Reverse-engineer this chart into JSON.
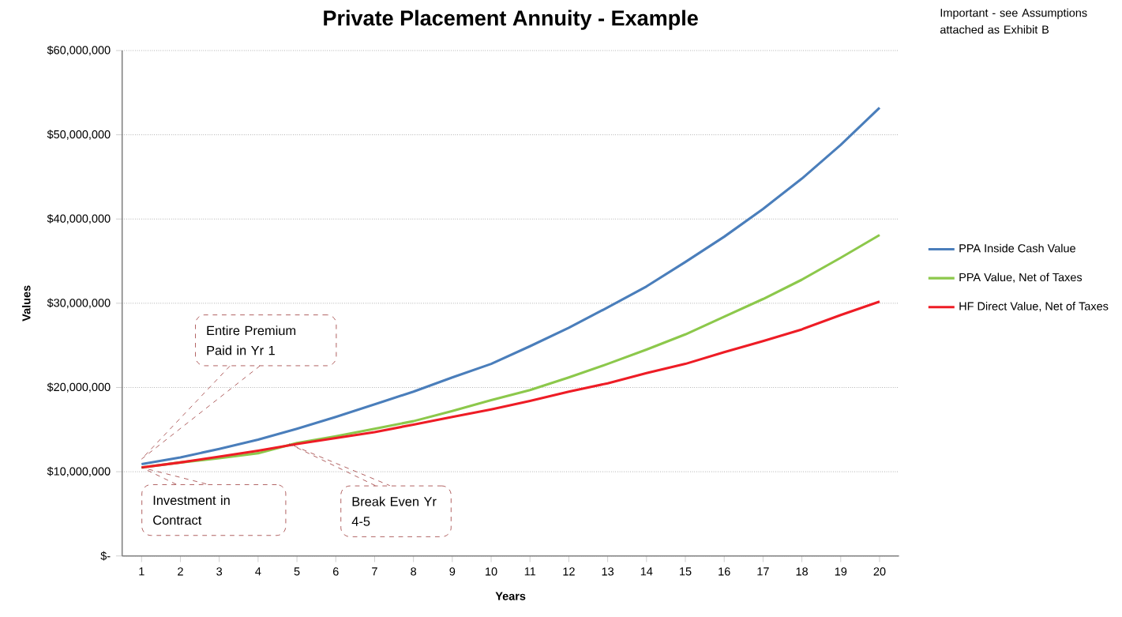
{
  "chart_data": {
    "type": "line",
    "title": "Private Placement Annuity - Example",
    "xlabel": "Years",
    "ylabel": "Values",
    "categories": [
      "1",
      "2",
      "3",
      "4",
      "5",
      "6",
      "7",
      "8",
      "9",
      "10",
      "11",
      "12",
      "13",
      "14",
      "15",
      "16",
      "17",
      "18",
      "19",
      "20"
    ],
    "series": [
      {
        "name": "PPA Inside Cash Value",
        "color": "#4a7ebb",
        "values": [
          10900000,
          11700000,
          12700000,
          13800000,
          15100000,
          16500000,
          18000000,
          19500000,
          21200000,
          22800000,
          24900000,
          27100000,
          29500000,
          32000000,
          34900000,
          37900000,
          41200000,
          44800000,
          48800000,
          53200000
        ]
      },
      {
        "name": "PPA Value, Net of Taxes",
        "color": "#8cc84b",
        "values": [
          10500000,
          11100000,
          11600000,
          12200000,
          13400000,
          14200000,
          15100000,
          16000000,
          17200000,
          18500000,
          19700000,
          21200000,
          22800000,
          24500000,
          26300000,
          28400000,
          30500000,
          32800000,
          35400000,
          38100000
        ]
      },
      {
        "name": "HF Direct Value, Net of Taxes",
        "color": "#ee1c25",
        "values": [
          10500000,
          11100000,
          11800000,
          12500000,
          13300000,
          14000000,
          14700000,
          15600000,
          16500000,
          17400000,
          18400000,
          19500000,
          20500000,
          21700000,
          22800000,
          24200000,
          25500000,
          26900000,
          28600000,
          30200000
        ]
      }
    ],
    "ylim": [
      0,
      60000000
    ],
    "yticks": [
      {
        "value": 0,
        "label": "$-"
      },
      {
        "value": 10000000,
        "label": "$10,000,000"
      },
      {
        "value": 20000000,
        "label": "$20,000,000"
      },
      {
        "value": 30000000,
        "label": "$30,000,000"
      },
      {
        "value": 40000000,
        "label": "$40,000,000"
      },
      {
        "value": 50000000,
        "label": "$50,000,000"
      },
      {
        "value": 60000000,
        "label": "$60,000,000"
      }
    ],
    "grid": "y",
    "legend": "right",
    "marker": "none",
    "line_style": "solid",
    "annotations": [
      "Entire Premium Paid in Yr 1",
      "Investment in Contract",
      "Break Even Yr 4-5",
      "Important - see Assumptions attached as Exhibit B"
    ]
  }
}
